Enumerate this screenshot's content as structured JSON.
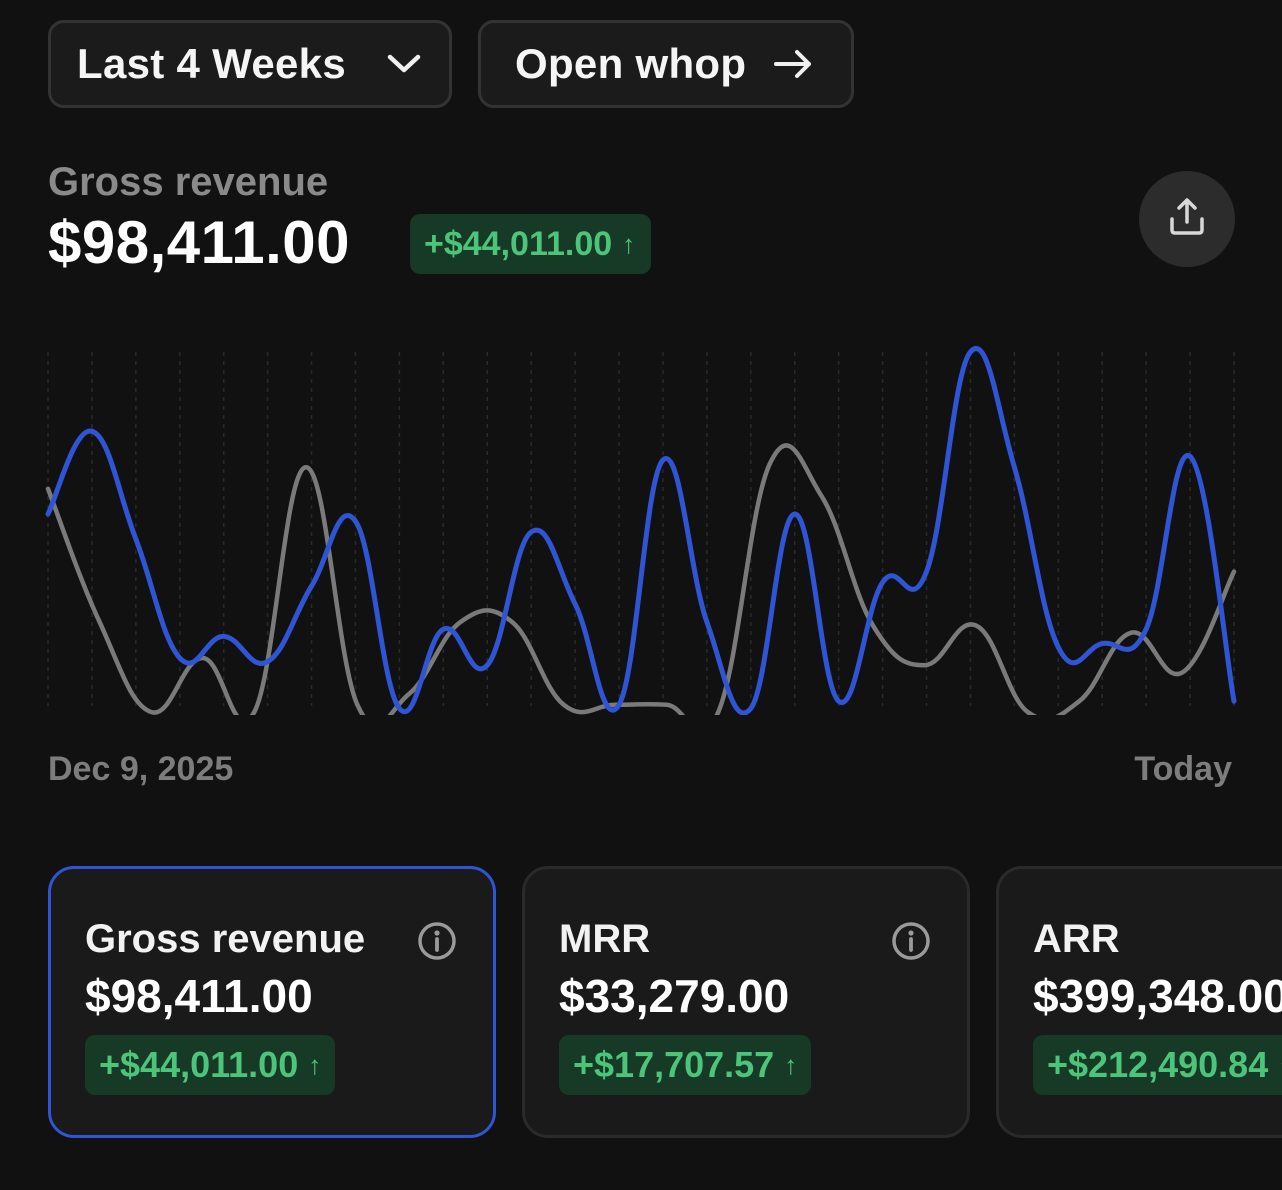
{
  "toolbar": {
    "range_label": "Last 4 Weeks",
    "range_icon": "chevron-down-icon",
    "open_label": "Open whop",
    "open_icon": "arrow-right-icon"
  },
  "summary": {
    "label": "Gross revenue",
    "value": "$98,411.00",
    "change": "+$44,011.00",
    "change_icon": "↑",
    "share_icon": "share-upload-icon"
  },
  "colors": {
    "background": "#111111",
    "current_series": "#2f55d4",
    "previous_series": "#7a7a7a",
    "positive": "#4cc57a",
    "positive_bg": "#163a26"
  },
  "chart_data": {
    "type": "line",
    "x_start_label": "Dec 9, 2025",
    "x_end_label": "Today",
    "grid": "vertical dashed",
    "y_range": [
      0,
      100
    ],
    "series": [
      {
        "color": "#2f55d4",
        "values": [
          55,
          78,
          48,
          15,
          21,
          14,
          35,
          53,
          1,
          23,
          13,
          50,
          30,
          2,
          70,
          25,
          1,
          55,
          3,
          36,
          39,
          100,
          68,
          18,
          19,
          23,
          71,
          3
        ]
      },
      {
        "color": "#7a7a7a",
        "values": [
          62,
          25,
          0,
          15,
          0,
          68,
          2,
          5,
          25,
          25,
          2,
          2,
          2,
          0,
          69,
          60,
          24,
          13,
          24,
          0,
          3,
          22,
          11,
          39
        ]
      }
    ]
  },
  "cards": [
    {
      "label": "Gross revenue",
      "value": "$98,411.00",
      "change": "+$44,011.00",
      "change_icon": "↑",
      "info_icon": "info-icon"
    },
    {
      "label": "MRR",
      "value": "$33,279.00",
      "change": "+$17,707.57",
      "change_icon": "↑",
      "info_icon": "info-icon"
    },
    {
      "label": "ARR",
      "value": "$399,348.00",
      "change": "+$212,490.84",
      "change_icon": "↑"
    }
  ]
}
